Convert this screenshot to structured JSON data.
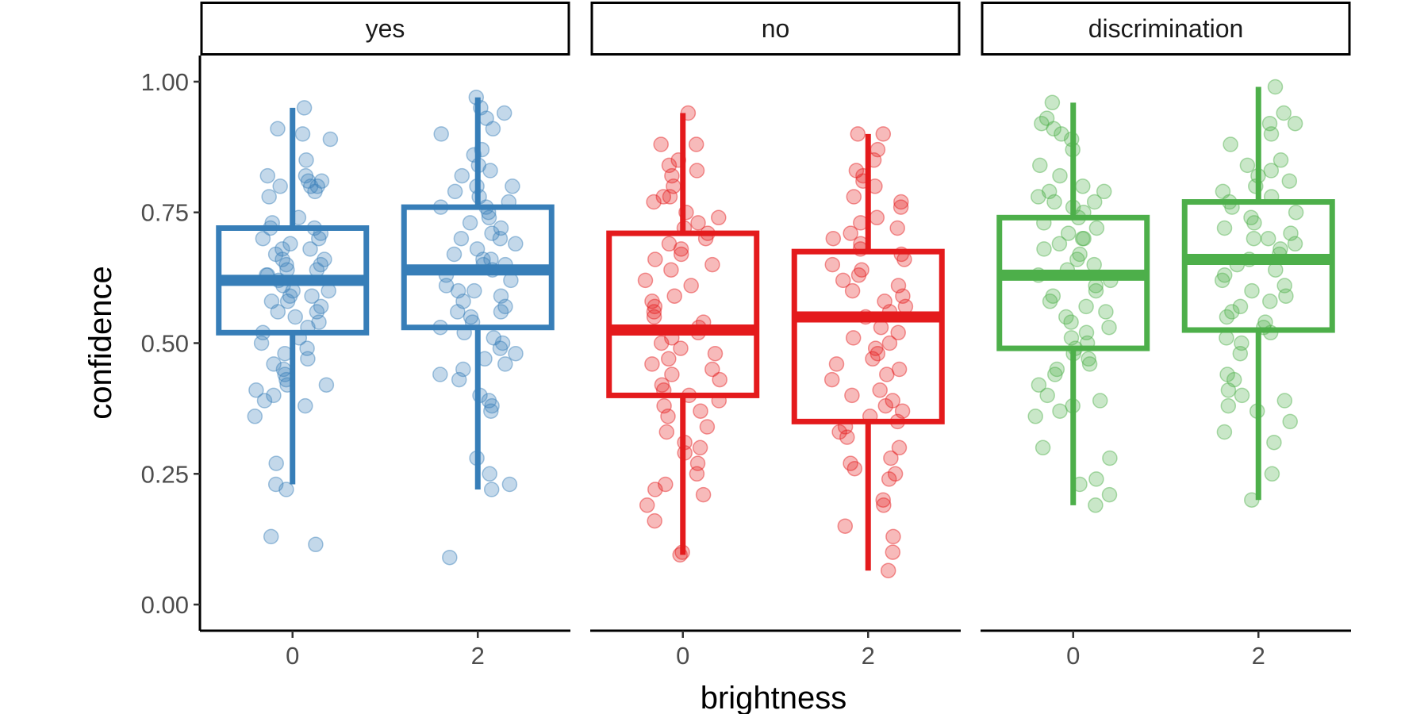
{
  "chart_data": {
    "type": "boxplot",
    "xlabel": "brightness",
    "ylabel": "confidence",
    "ylim": [
      -0.05,
      1.05
    ],
    "yticks": [
      "0.00",
      "0.25",
      "0.50",
      "0.75",
      "1.00"
    ],
    "categories": [
      "0",
      "2"
    ],
    "grid": false,
    "legend": "none",
    "panels": [
      {
        "name": "yes",
        "color": "#377EB8",
        "boxes": [
          {
            "x": "0",
            "min": 0.23,
            "q1": 0.52,
            "median": 0.62,
            "q3": 0.72,
            "max": 0.95,
            "outliers": [
              0.13,
              0.115
            ],
            "points": [
              0.95,
              0.91,
              0.9,
              0.89,
              0.85,
              0.82,
              0.82,
              0.81,
              0.81,
              0.8,
              0.8,
              0.8,
              0.79,
              0.78,
              0.74,
              0.73,
              0.72,
              0.72,
              0.71,
              0.7,
              0.7,
              0.69,
              0.68,
              0.68,
              0.67,
              0.66,
              0.66,
              0.65,
              0.65,
              0.64,
              0.64,
              0.63,
              0.63,
              0.62,
              0.61,
              0.6,
              0.6,
              0.59,
              0.59,
              0.58,
              0.58,
              0.57,
              0.56,
              0.56,
              0.55,
              0.54,
              0.53,
              0.52,
              0.51,
              0.5,
              0.49,
              0.48,
              0.47,
              0.46,
              0.45,
              0.44,
              0.43,
              0.42,
              0.42,
              0.41,
              0.4,
              0.39,
              0.38,
              0.36,
              0.27,
              0.23,
              0.22,
              0.13,
              0.115
            ]
          },
          {
            "x": "2",
            "min": 0.22,
            "q1": 0.53,
            "median": 0.64,
            "q3": 0.76,
            "max": 0.97,
            "outliers": [
              0.09
            ],
            "points": [
              0.97,
              0.95,
              0.94,
              0.93,
              0.91,
              0.9,
              0.87,
              0.86,
              0.84,
              0.83,
              0.82,
              0.8,
              0.8,
              0.79,
              0.78,
              0.77,
              0.76,
              0.76,
              0.75,
              0.74,
              0.73,
              0.72,
              0.71,
              0.7,
              0.7,
              0.69,
              0.68,
              0.67,
              0.66,
              0.66,
              0.65,
              0.65,
              0.64,
              0.63,
              0.62,
              0.61,
              0.6,
              0.6,
              0.59,
              0.58,
              0.57,
              0.56,
              0.56,
              0.55,
              0.54,
              0.53,
              0.52,
              0.51,
              0.5,
              0.49,
              0.48,
              0.47,
              0.46,
              0.45,
              0.44,
              0.43,
              0.4,
              0.39,
              0.38,
              0.37,
              0.28,
              0.25,
              0.23,
              0.22,
              0.09
            ]
          }
        ]
      },
      {
        "name": "no",
        "color": "#E41A1C",
        "boxes": [
          {
            "x": "0",
            "min": 0.095,
            "q1": 0.4,
            "median": 0.525,
            "q3": 0.71,
            "max": 0.94,
            "outliers": [],
            "points": [
              0.94,
              0.88,
              0.88,
              0.85,
              0.84,
              0.83,
              0.82,
              0.8,
              0.78,
              0.78,
              0.77,
              0.75,
              0.74,
              0.73,
              0.72,
              0.71,
              0.7,
              0.69,
              0.68,
              0.67,
              0.66,
              0.65,
              0.64,
              0.62,
              0.61,
              0.59,
              0.58,
              0.57,
              0.56,
              0.55,
              0.54,
              0.53,
              0.52,
              0.51,
              0.5,
              0.49,
              0.48,
              0.47,
              0.46,
              0.45,
              0.44,
              0.43,
              0.42,
              0.41,
              0.4,
              0.39,
              0.38,
              0.37,
              0.36,
              0.34,
              0.33,
              0.31,
              0.3,
              0.29,
              0.27,
              0.25,
              0.23,
              0.22,
              0.21,
              0.19,
              0.16,
              0.1,
              0.095
            ]
          },
          {
            "x": "2",
            "min": 0.065,
            "q1": 0.35,
            "median": 0.55,
            "q3": 0.675,
            "max": 0.9,
            "outliers": [],
            "points": [
              0.9,
              0.9,
              0.87,
              0.85,
              0.83,
              0.82,
              0.81,
              0.8,
              0.78,
              0.77,
              0.76,
              0.74,
              0.73,
              0.72,
              0.71,
              0.7,
              0.69,
              0.68,
              0.67,
              0.66,
              0.65,
              0.64,
              0.63,
              0.62,
              0.61,
              0.6,
              0.59,
              0.58,
              0.57,
              0.56,
              0.55,
              0.53,
              0.52,
              0.51,
              0.5,
              0.49,
              0.48,
              0.47,
              0.46,
              0.45,
              0.44,
              0.43,
              0.41,
              0.4,
              0.39,
              0.38,
              0.37,
              0.36,
              0.35,
              0.34,
              0.33,
              0.32,
              0.3,
              0.28,
              0.27,
              0.26,
              0.25,
              0.24,
              0.2,
              0.19,
              0.15,
              0.13,
              0.1,
              0.065
            ]
          }
        ]
      },
      {
        "name": "discrimination",
        "color": "#4DAF4A",
        "boxes": [
          {
            "x": "0",
            "min": 0.19,
            "q1": 0.49,
            "median": 0.63,
            "q3": 0.74,
            "max": 0.96,
            "outliers": [],
            "points": [
              0.96,
              0.93,
              0.92,
              0.91,
              0.9,
              0.89,
              0.87,
              0.84,
              0.82,
              0.8,
              0.79,
              0.79,
              0.78,
              0.77,
              0.77,
              0.76,
              0.75,
              0.74,
              0.73,
              0.72,
              0.71,
              0.7,
              0.7,
              0.69,
              0.68,
              0.67,
              0.66,
              0.65,
              0.64,
              0.63,
              0.62,
              0.61,
              0.6,
              0.59,
              0.58,
              0.57,
              0.56,
              0.55,
              0.54,
              0.53,
              0.52,
              0.51,
              0.5,
              0.49,
              0.48,
              0.47,
              0.46,
              0.45,
              0.44,
              0.42,
              0.4,
              0.39,
              0.38,
              0.37,
              0.36,
              0.3,
              0.28,
              0.24,
              0.23,
              0.21,
              0.19
            ]
          },
          {
            "x": "2",
            "min": 0.2,
            "q1": 0.525,
            "median": 0.66,
            "q3": 0.77,
            "max": 0.99,
            "outliers": [],
            "points": [
              0.99,
              0.94,
              0.92,
              0.92,
              0.9,
              0.88,
              0.85,
              0.84,
              0.83,
              0.82,
              0.81,
              0.8,
              0.79,
              0.78,
              0.77,
              0.76,
              0.75,
              0.74,
              0.73,
              0.72,
              0.71,
              0.7,
              0.7,
              0.69,
              0.68,
              0.67,
              0.66,
              0.65,
              0.64,
              0.63,
              0.62,
              0.61,
              0.6,
              0.59,
              0.58,
              0.57,
              0.56,
              0.55,
              0.54,
              0.53,
              0.52,
              0.51,
              0.5,
              0.48,
              0.44,
              0.43,
              0.41,
              0.4,
              0.39,
              0.38,
              0.37,
              0.35,
              0.33,
              0.31,
              0.25,
              0.2
            ]
          }
        ]
      }
    ]
  }
}
